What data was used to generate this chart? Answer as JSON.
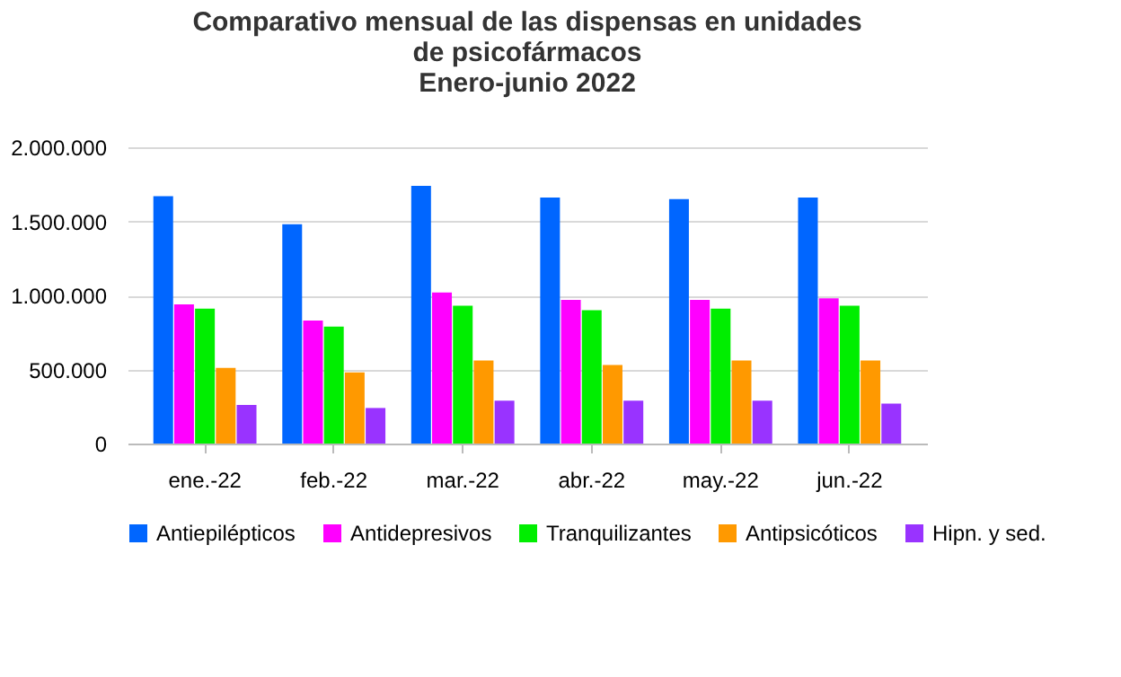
{
  "chart_data": {
    "type": "bar",
    "title": [
      "Comparativo mensual de las dispensas en unidades",
      "de psicofármacos",
      "Enero-junio 2022"
    ],
    "categories": [
      "ene.-22",
      "feb.-22",
      "mar.-22",
      "abr.-22",
      "may.-22",
      "jun.-22"
    ],
    "series": [
      {
        "name": "Antiepilépticos",
        "color": "#0066ff",
        "values": [
          1670000,
          1480000,
          1740000,
          1660000,
          1650000,
          1660000
        ]
      },
      {
        "name": "Antidepresivos",
        "color": "#ff00ff",
        "values": [
          940000,
          830000,
          1020000,
          970000,
          970000,
          980000
        ]
      },
      {
        "name": "Tranquilizantes",
        "color": "#00ee00",
        "values": [
          910000,
          790000,
          930000,
          900000,
          910000,
          930000
        ]
      },
      {
        "name": "Antipsicóticos",
        "color": "#ff9900",
        "values": [
          510000,
          480000,
          560000,
          530000,
          560000,
          560000
        ]
      },
      {
        "name": "Hipn.  y  sed.",
        "color": "#9933ff",
        "values": [
          260000,
          240000,
          290000,
          290000,
          290000,
          270000
        ]
      }
    ],
    "ylim": [
      0,
      2000000
    ],
    "yticks": [
      0,
      {
        "value": 500000,
        "label": "500.000"
      },
      {
        "value": 1000000,
        "label": "1.000.000"
      },
      {
        "value": 1500000,
        "label": "1.500.000"
      },
      {
        "value": 2000000,
        "label": "2.000.000"
      }
    ],
    "grid": "y",
    "legend": "bottom"
  }
}
